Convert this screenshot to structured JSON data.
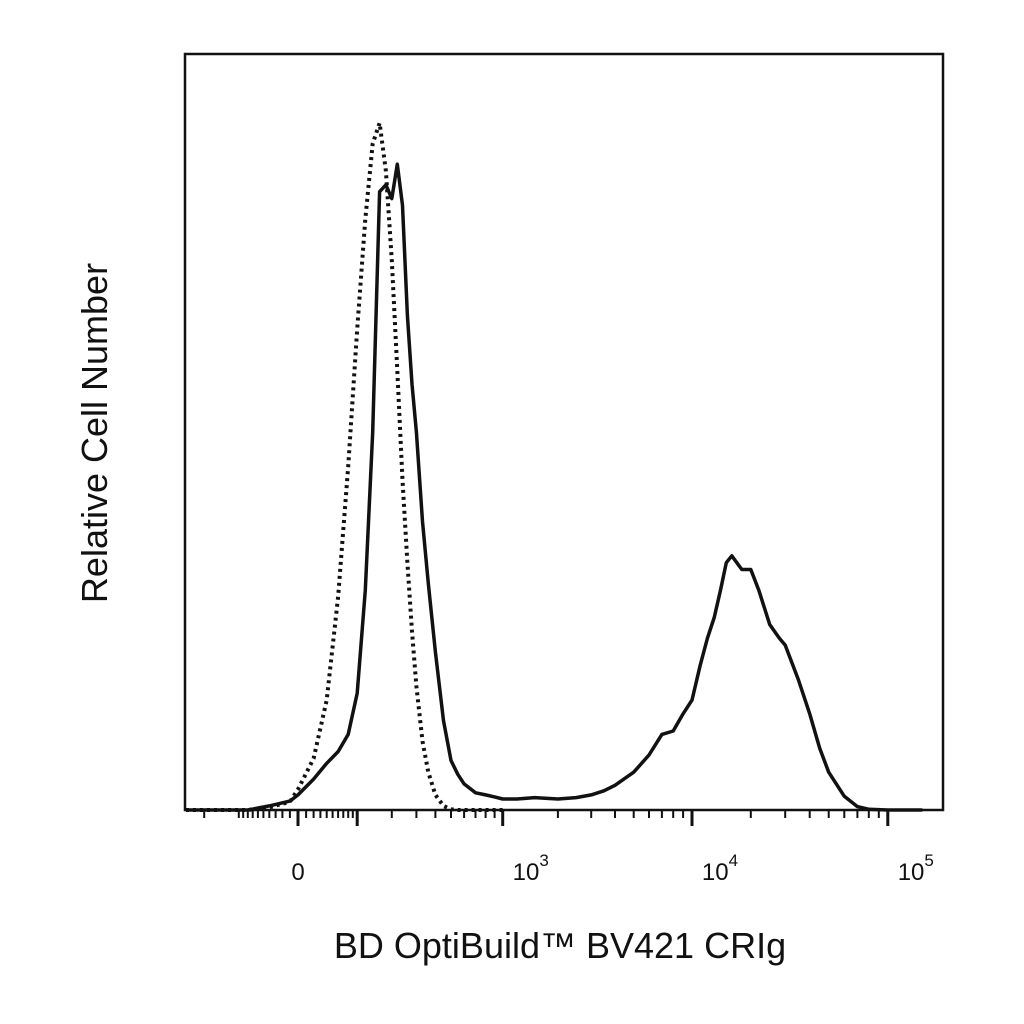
{
  "chart_data": {
    "type": "line",
    "title": "",
    "xlabel": "BD OptiBuild™ BV421 CRIg",
    "ylabel": "Relative Cell Number",
    "x_scale": "biexponential",
    "x_ticks": [
      {
        "value": 0,
        "base": "0",
        "exp": ""
      },
      {
        "value": 1000,
        "base": "10",
        "exp": "3"
      },
      {
        "value": 10000,
        "base": "10",
        "exp": "4"
      },
      {
        "value": 100000,
        "base": "10",
        "exp": "5"
      }
    ],
    "y_ticks": [],
    "grid": false,
    "legend": "none",
    "series": [
      {
        "style": "dotted",
        "color": "#111111",
        "x": [
          -700,
          -400,
          -250,
          -150,
          -80,
          -40,
          -10,
          0,
          20,
          40,
          60,
          80,
          100,
          120,
          140,
          160,
          180,
          200,
          220,
          240,
          260,
          280,
          300,
          330,
          360,
          400,
          450,
          500,
          550,
          600,
          700,
          800,
          1000
        ],
        "y": [
          0,
          0,
          0,
          0,
          0,
          0.004,
          0.012,
          0.03,
          0.075,
          0.16,
          0.31,
          0.5,
          0.7,
          0.86,
          0.97,
          1.0,
          0.93,
          0.8,
          0.64,
          0.48,
          0.36,
          0.26,
          0.18,
          0.1,
          0.055,
          0.022,
          0.006,
          0.001,
          0,
          0,
          0,
          0,
          0
        ]
      },
      {
        "style": "solid",
        "color": "#111111",
        "x": [
          -700,
          -400,
          -250,
          -150,
          -80,
          -40,
          -10,
          0,
          20,
          40,
          60,
          80,
          100,
          120,
          140,
          160,
          180,
          200,
          220,
          240,
          260,
          280,
          300,
          330,
          360,
          400,
          450,
          500,
          550,
          600,
          700,
          800,
          900,
          1000,
          1200,
          1500,
          2000,
          2500,
          3000,
          3500,
          4000,
          5000,
          6000,
          7000,
          8000,
          9000,
          10000,
          11000,
          12000,
          13000,
          14000,
          15000,
          16000,
          18000,
          20000,
          22000,
          25000,
          28000,
          30000,
          35000,
          40000,
          45000,
          50000,
          60000,
          70000,
          80000,
          100000,
          150000
        ],
        "y": [
          0,
          0,
          0,
          0,
          0,
          0.006,
          0.013,
          0.022,
          0.045,
          0.068,
          0.085,
          0.11,
          0.17,
          0.32,
          0.55,
          0.9,
          0.91,
          0.89,
          0.94,
          0.88,
          0.72,
          0.62,
          0.55,
          0.42,
          0.33,
          0.23,
          0.13,
          0.072,
          0.052,
          0.038,
          0.025,
          0.022,
          0.019,
          0.016,
          0.016,
          0.018,
          0.016,
          0.018,
          0.022,
          0.028,
          0.036,
          0.055,
          0.08,
          0.11,
          0.115,
          0.14,
          0.16,
          0.21,
          0.25,
          0.28,
          0.32,
          0.36,
          0.37,
          0.35,
          0.35,
          0.32,
          0.27,
          0.25,
          0.24,
          0.19,
          0.14,
          0.09,
          0.055,
          0.02,
          0.005,
          0.001,
          0,
          0
        ]
      }
    ]
  }
}
